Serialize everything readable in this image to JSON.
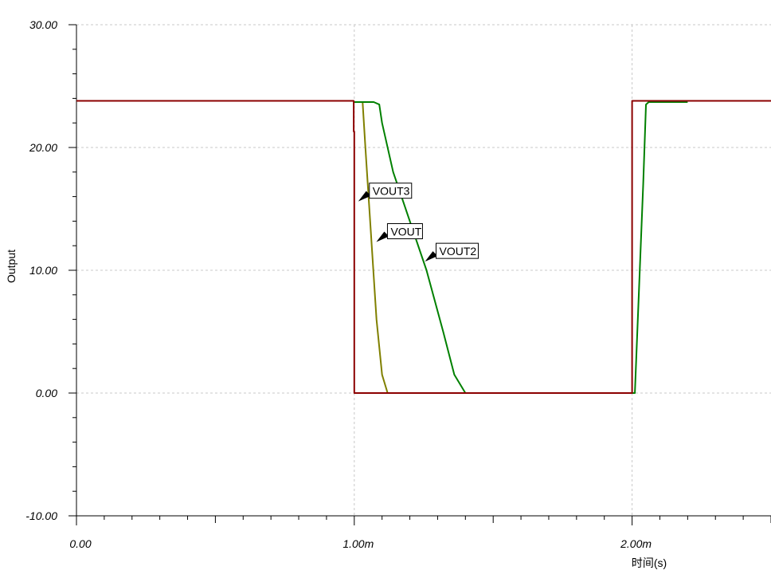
{
  "chart_data": {
    "type": "line",
    "xlabel": "时间(s)",
    "ylabel": "Output",
    "xlim": [
      0,
      0.0025
    ],
    "ylim": [
      -10,
      30
    ],
    "grid": true,
    "x_major_ticks": [
      {
        "value": 0,
        "label": "0.00"
      },
      {
        "value": 0.001,
        "label": "1.00m"
      },
      {
        "value": 0.002,
        "label": "2.00m"
      }
    ],
    "y_major_ticks": [
      {
        "value": 30,
        "label": "30.00"
      },
      {
        "value": 20,
        "label": "20.00"
      },
      {
        "value": 10,
        "label": "10.00"
      },
      {
        "value": 0,
        "label": "0.00"
      },
      {
        "value": -10,
        "label": "-10.00"
      }
    ],
    "series": [
      {
        "name": "VOUT3",
        "color": "#8b0000",
        "label_point": {
          "x": 0.00102,
          "y": 15.8
        },
        "points": [
          [
            0,
            23.8
          ],
          [
            0.000998,
            23.8
          ],
          [
            0.000998,
            21.3
          ],
          [
            0.001,
            21.3
          ],
          [
            0.001,
            0
          ],
          [
            0.002,
            0
          ],
          [
            0.002,
            8.6
          ],
          [
            0.002,
            23.8
          ],
          [
            0.0025,
            23.8
          ]
        ]
      },
      {
        "name": "VOUT",
        "color": "#808000",
        "label_point": {
          "x": 0.001085,
          "y": 12.5
        },
        "points": [
          [
            0.001,
            23.7
          ],
          [
            0.00103,
            23.7
          ],
          [
            0.00104,
            20
          ],
          [
            0.00106,
            13
          ],
          [
            0.00108,
            6
          ],
          [
            0.0011,
            1.5
          ],
          [
            0.00112,
            0
          ]
        ]
      },
      {
        "name": "VOUT2",
        "color": "#008000",
        "label_point": {
          "x": 0.00126,
          "y": 10.9
        },
        "points": [
          [
            0.001,
            23.7
          ],
          [
            0.00107,
            23.7
          ],
          [
            0.00109,
            23.5
          ],
          [
            0.0011,
            22
          ],
          [
            0.00114,
            18
          ],
          [
            0.0012,
            14
          ],
          [
            0.00126,
            10
          ],
          [
            0.00132,
            5
          ],
          [
            0.00136,
            1.5
          ],
          [
            0.0014,
            0
          ],
          [
            0.002,
            0
          ],
          [
            0.00201,
            0
          ],
          [
            0.00204,
            17
          ],
          [
            0.00205,
            23.5
          ],
          [
            0.00206,
            23.7
          ],
          [
            0.0022,
            23.7
          ]
        ]
      }
    ]
  }
}
